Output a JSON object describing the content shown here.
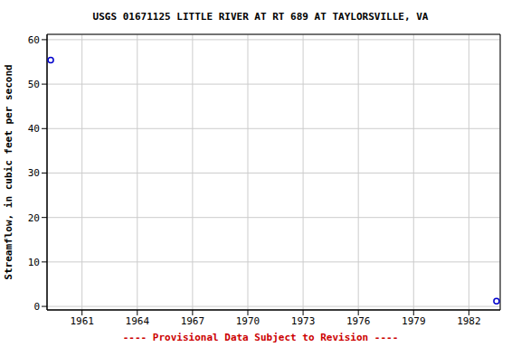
{
  "chart_data": {
    "type": "scatter",
    "title": "USGS 01671125 LITTLE RIVER AT RT 689 AT TAYLORSVILLE, VA",
    "ylabel": "Streamflow, in cubic feet per second",
    "annotation": "---- Provisional Data Subject to Revision ----",
    "x": [
      1959.3,
      1983.5
    ],
    "values": [
      55.4,
      1.2
    ],
    "xlim": [
      1959.1,
      1983.7
    ],
    "xticks": [
      1961,
      1964,
      1967,
      1970,
      1973,
      1976,
      1979,
      1982
    ],
    "ylim": [
      -0.8,
      61.2
    ],
    "yticks": [
      0,
      10,
      20,
      30,
      40,
      50,
      60
    ],
    "grid": true,
    "color": "#0000cc",
    "marker": "circle"
  }
}
